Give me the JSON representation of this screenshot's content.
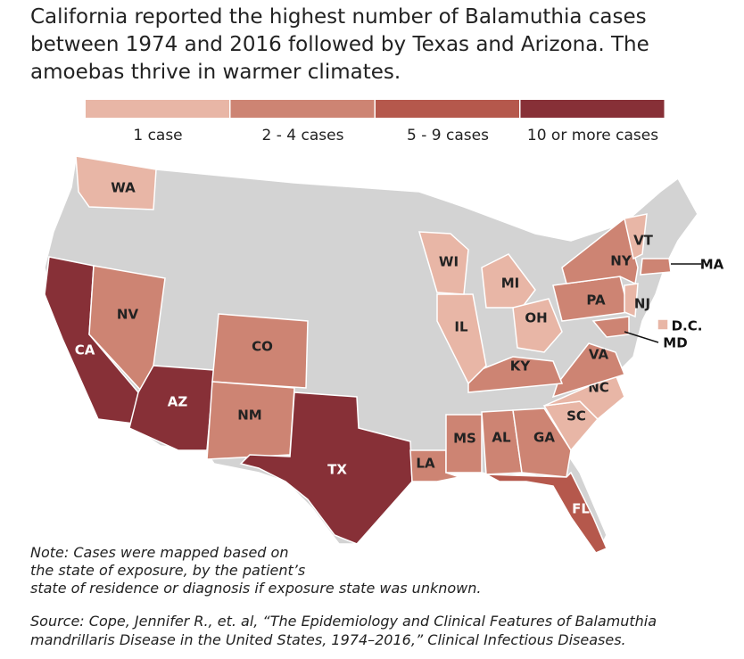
{
  "title_lines": [
    "California reported the highest number of Balamuthia cases",
    "between 1974 and 2016 followed by Texas and Arizona. The",
    "amoebas thrive in warmer climates."
  ],
  "legend": [
    {
      "label": "1 case",
      "color": "#e8b6a6"
    },
    {
      "label": "2 - 4 cases",
      "color": "#cd8473"
    },
    {
      "label": "5 - 9 cases",
      "color": "#b5584c"
    },
    {
      "label": "10 or more cases",
      "color": "#873037"
    }
  ],
  "states": [
    {
      "label": "WA",
      "legend": 0
    },
    {
      "label": "CA",
      "legend": 3
    },
    {
      "label": "NV",
      "legend": 1
    },
    {
      "label": "AZ",
      "legend": 3
    },
    {
      "label": "CO",
      "legend": 1
    },
    {
      "label": "NM",
      "legend": 1
    },
    {
      "label": "TX",
      "legend": 3
    },
    {
      "label": "LA",
      "legend": 1
    },
    {
      "label": "MS",
      "legend": 1
    },
    {
      "label": "AL",
      "legend": 1
    },
    {
      "label": "GA",
      "legend": 1
    },
    {
      "label": "FL",
      "legend": 2
    },
    {
      "label": "SC",
      "legend": 0
    },
    {
      "label": "NC",
      "legend": 0
    },
    {
      "label": "VA",
      "legend": 1
    },
    {
      "label": "KY",
      "legend": 1
    },
    {
      "label": "IL",
      "legend": 0
    },
    {
      "label": "WI",
      "legend": 0
    },
    {
      "label": "MI",
      "legend": 0
    },
    {
      "label": "OH",
      "legend": 0
    },
    {
      "label": "PA",
      "legend": 1
    },
    {
      "label": "NY",
      "legend": 1
    },
    {
      "label": "VT",
      "legend": 0
    },
    {
      "label": "MA",
      "legend": 1
    },
    {
      "label": "NJ",
      "legend": 0
    },
    {
      "label": "MD",
      "legend": 1
    },
    {
      "label": "D.C.",
      "legend": 0
    }
  ],
  "note_lines": [
    "Note: Cases were mapped based on",
    "the state of exposure, by the patient’s",
    "state of residence or diagnosis if exposure state was unknown."
  ],
  "source_lines": [
    "Source: Cope, Jennifer R., et. al, “The Epidemiology and Clinical Features of Balamuthia",
    "mandrillaris Disease in the United States, 1974–2016,” Clinical Infectious Diseases."
  ]
}
